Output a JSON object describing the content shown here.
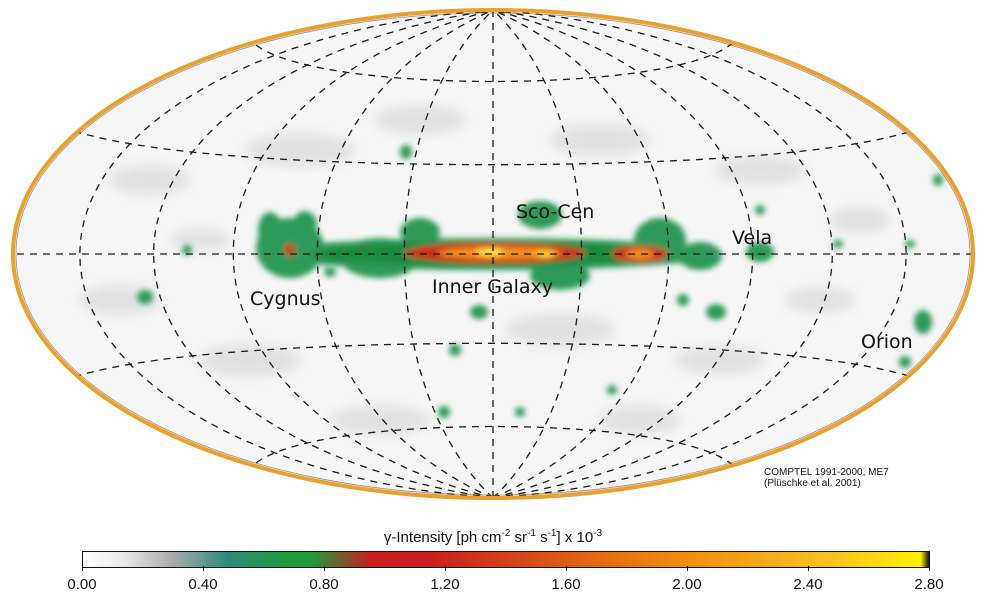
{
  "map": {
    "projection": "Hammer-Aitoff (galactic, all-sky)",
    "labels": {
      "sco_cen": "Sco-Cen",
      "vela": "Vela",
      "cygnus": "Cygnus",
      "inner_galaxy": "Inner Galaxy",
      "orion": "Orion"
    },
    "credit_line1": "COMPTEL 1991-2000, ME7",
    "credit_line2": "(Plüschke et al. 2001)"
  },
  "colorbar": {
    "title_prefix": "γ-Intensity [ph cm",
    "title_exp1": "-2",
    "title_mid1": " sr",
    "title_exp2": "-1",
    "title_mid2": " s",
    "title_exp3": "-1",
    "title_suffix": "]   x 10",
    "title_exp4": "-3",
    "ticks": [
      "0.00",
      "0.40",
      "0.80",
      "1.20",
      "1.60",
      "2.00",
      "2.40",
      "2.80"
    ],
    "range": [
      0.0,
      2.8
    ],
    "colors": {
      "low": "#ffffff",
      "teal": "#2e8c7a",
      "green": "#1e9a3c",
      "red": "#c8201c",
      "orange": "#f08a10",
      "yellow": "#fff000"
    }
  }
}
